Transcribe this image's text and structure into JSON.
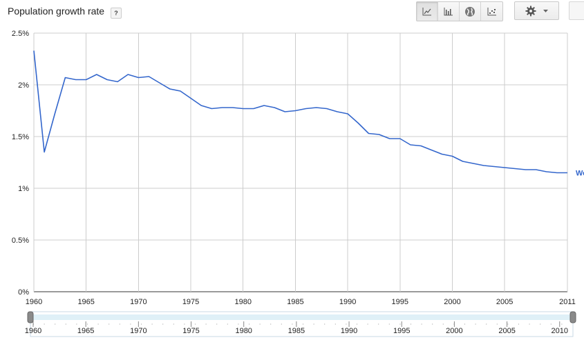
{
  "header": {
    "title": "Population growth rate",
    "help_label": "?"
  },
  "toolbar": {
    "buttons": [
      {
        "icon": "line-chart-icon",
        "active": true
      },
      {
        "icon": "bar-chart-icon",
        "active": false
      },
      {
        "icon": "globe-icon",
        "active": false
      },
      {
        "icon": "scatter-plot-icon",
        "active": false
      }
    ],
    "settings_icon": "gear-icon",
    "dropdown_icon": "caret-down-icon"
  },
  "chart_data": {
    "type": "line",
    "title": "Population growth rate",
    "xlim": [
      1960,
      2011
    ],
    "ylim": [
      0,
      2.5
    ],
    "y_ticks": [
      "0%",
      "0.5%",
      "1%",
      "1.5%",
      "2%",
      "2.5%"
    ],
    "x_ticks": [
      "1960",
      "1965",
      "1970",
      "1975",
      "1980",
      "1985",
      "1990",
      "1995",
      "2000",
      "2005",
      "2011"
    ],
    "grid": true,
    "line_color": "#3366cc",
    "series": [
      {
        "name": "Wo",
        "x": [
          1960,
          1961,
          1962,
          1963,
          1964,
          1965,
          1966,
          1967,
          1968,
          1969,
          1970,
          1971,
          1972,
          1973,
          1974,
          1975,
          1976,
          1977,
          1978,
          1979,
          1980,
          1981,
          1982,
          1983,
          1984,
          1985,
          1986,
          1987,
          1988,
          1989,
          1990,
          1991,
          1992,
          1993,
          1994,
          1995,
          1996,
          1997,
          1998,
          1999,
          2000,
          2001,
          2002,
          2003,
          2004,
          2005,
          2006,
          2007,
          2008,
          2009,
          2010,
          2011
        ],
        "values": [
          2.33,
          1.35,
          1.72,
          2.07,
          2.05,
          2.05,
          2.1,
          2.05,
          2.03,
          2.1,
          2.07,
          2.08,
          2.02,
          1.96,
          1.94,
          1.87,
          1.8,
          1.77,
          1.78,
          1.78,
          1.77,
          1.77,
          1.8,
          1.78,
          1.74,
          1.75,
          1.77,
          1.78,
          1.77,
          1.74,
          1.72,
          1.63,
          1.53,
          1.52,
          1.48,
          1.48,
          1.42,
          1.41,
          1.37,
          1.33,
          1.31,
          1.26,
          1.24,
          1.22,
          1.21,
          1.2,
          1.19,
          1.18,
          1.18,
          1.16,
          1.15,
          1.15
        ]
      }
    ]
  },
  "range_slider": {
    "x_ticks": [
      "1960",
      "1965",
      "1970",
      "1975",
      "1980",
      "1985",
      "1990",
      "1995",
      "2000",
      "2005",
      "2010"
    ]
  }
}
